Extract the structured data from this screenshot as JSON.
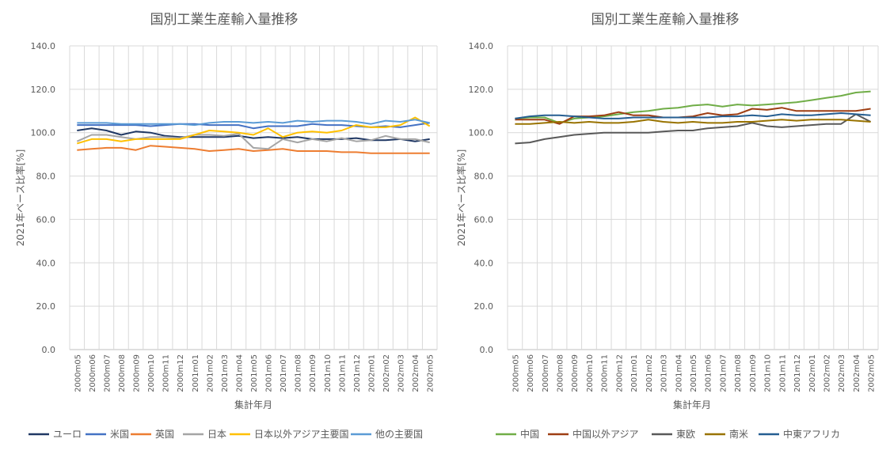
{
  "chart_data": [
    {
      "type": "line",
      "title": "国別工業生産輸入量推移",
      "xlabel": "集計年月",
      "ylabel": "2021年ベース比率[%]",
      "ylim": [
        0,
        140
      ],
      "yticks": [
        "0.0",
        "20.0",
        "40.0",
        "60.0",
        "80.0",
        "100.0",
        "120.0",
        "140.0"
      ],
      "ytick_values": [
        0,
        20,
        40,
        60,
        80,
        100,
        120,
        140
      ],
      "grid": true,
      "legend": "bottom",
      "categories": [
        "2000m05",
        "2000m06",
        "2000m07",
        "2000m08",
        "2000m09",
        "2000m10",
        "2000m11",
        "2000m12",
        "2001m01",
        "2001m02",
        "2001m03",
        "2001m04",
        "2001m05",
        "2001m06",
        "2001m07",
        "2001m08",
        "2001m09",
        "2001m10",
        "2001m11",
        "2001m12",
        "2002m01",
        "2002m02",
        "2002m03",
        "2002m04",
        "2002m05"
      ],
      "series": [
        {
          "name": "ユーロ",
          "color": "#203864",
          "values": [
            101,
            102,
            101,
            99,
            100.5,
            100,
            98.5,
            98,
            98,
            98,
            98,
            98.5,
            97.5,
            98,
            97.5,
            98,
            97,
            97,
            97,
            97.5,
            96.5,
            96.5,
            97,
            96,
            97
          ]
        },
        {
          "name": "米国",
          "color": "#4472c4",
          "values": [
            103.5,
            103.5,
            103.5,
            103.5,
            103.5,
            103,
            103.5,
            104,
            104,
            103.5,
            103.5,
            103.5,
            102,
            103,
            103,
            103,
            104,
            103.5,
            103.5,
            103,
            102.5,
            103,
            102.5,
            103.5,
            104.5
          ]
        },
        {
          "name": "英国",
          "color": "#ed7d31",
          "values": [
            92,
            92.5,
            93,
            93,
            92,
            94,
            93.5,
            93,
            92.5,
            91.5,
            92,
            92.5,
            91.5,
            92,
            92.5,
            91.5,
            91.5,
            91.5,
            91,
            91,
            90.5,
            90.5,
            90.5,
            90.5,
            90.5
          ]
        },
        {
          "name": "日本",
          "color": "#a5a5a5",
          "values": [
            96,
            99,
            99,
            98,
            97,
            98,
            98,
            97.5,
            99,
            99,
            98.5,
            99.5,
            93,
            92.5,
            97,
            95.5,
            97,
            96,
            97.5,
            96,
            96.5,
            98.5,
            97,
            97,
            95.5
          ]
        },
        {
          "name": "日本以外アジア主要国",
          "color": "#ffc000",
          "values": [
            95,
            97,
            97,
            96,
            97,
            97,
            97,
            97,
            99,
            101,
            100.5,
            100,
            99,
            102,
            98,
            100,
            100.5,
            100,
            101,
            103.5,
            102.5,
            102.5,
            103.5,
            107,
            103
          ]
        },
        {
          "name": "他の主要国",
          "color": "#5b9bd5",
          "values": [
            104.5,
            104.5,
            104.5,
            104,
            104,
            104,
            104,
            104,
            103.5,
            104.5,
            105,
            105,
            104.5,
            105,
            104.5,
            105.5,
            105,
            105.5,
            105.5,
            105,
            104,
            105.5,
            105,
            106,
            104.5
          ]
        }
      ]
    },
    {
      "type": "line",
      "title": "国別工業生産輸入量推移",
      "xlabel": "集計年月",
      "ylabel": "2021年ベース比率[%]",
      "ylim": [
        0,
        140
      ],
      "yticks": [
        "0.0",
        "20.0",
        "40.0",
        "60.0",
        "80.0",
        "100.0",
        "120.0",
        "140.0"
      ],
      "ytick_values": [
        0,
        20,
        40,
        60,
        80,
        100,
        120,
        140
      ],
      "grid": true,
      "legend": "bottom",
      "categories": [
        "2000m05",
        "2000m06",
        "2000m07",
        "2000m08",
        "2000m09",
        "2000m10",
        "2000m11",
        "2000m12",
        "2001m01",
        "2001m02",
        "2001m03",
        "2001m04",
        "2001m05",
        "2001m06",
        "2001m07",
        "2001m08",
        "2001m09",
        "2001m10",
        "2001m11",
        "2001m12",
        "2002m01",
        "2002m02",
        "2002m03",
        "2002m04",
        "2002m05"
      ],
      "series": [
        {
          "name": "中国",
          "color": "#70ad47",
          "values": [
            106.5,
            107,
            107,
            104.5,
            106.5,
            107,
            107.5,
            108.5,
            109.5,
            110,
            111,
            111.5,
            112.5,
            113,
            112,
            113,
            112.5,
            113,
            113.5,
            114,
            115,
            116,
            117,
            118.5,
            119
          ]
        },
        {
          "name": "中国以外アジア",
          "color": "#9e3e13",
          "values": [
            106,
            106,
            106,
            104,
            107.5,
            107.5,
            108,
            109.5,
            108,
            108,
            107,
            107,
            107.5,
            109,
            108,
            108.5,
            111,
            110.5,
            111.5,
            110,
            110,
            110,
            110,
            110,
            111
          ]
        },
        {
          "name": "東欧",
          "color": "#595959",
          "values": [
            95,
            95.5,
            97,
            98,
            99,
            99.5,
            100,
            100,
            100,
            100,
            100.5,
            101,
            101,
            102,
            102.5,
            103,
            104.5,
            103,
            102.5,
            103,
            103.5,
            104,
            104,
            108.5,
            105
          ]
        },
        {
          "name": "南米",
          "color": "#997300",
          "values": [
            104,
            104,
            104.5,
            105,
            104.5,
            105,
            104.5,
            104.5,
            105,
            106,
            105,
            104.5,
            105,
            104.5,
            104.5,
            105,
            105,
            105.5,
            106,
            105.5,
            106,
            106,
            106,
            105.5,
            105
          ]
        },
        {
          "name": "中東アフリカ",
          "color": "#255e91",
          "values": [
            106.5,
            107.5,
            108,
            108,
            107.5,
            107,
            106.5,
            106.5,
            107,
            107,
            107,
            107,
            107,
            107,
            107.5,
            107.5,
            108,
            107.5,
            108.5,
            108,
            108,
            108.5,
            109,
            108.5,
            108
          ]
        }
      ]
    }
  ]
}
